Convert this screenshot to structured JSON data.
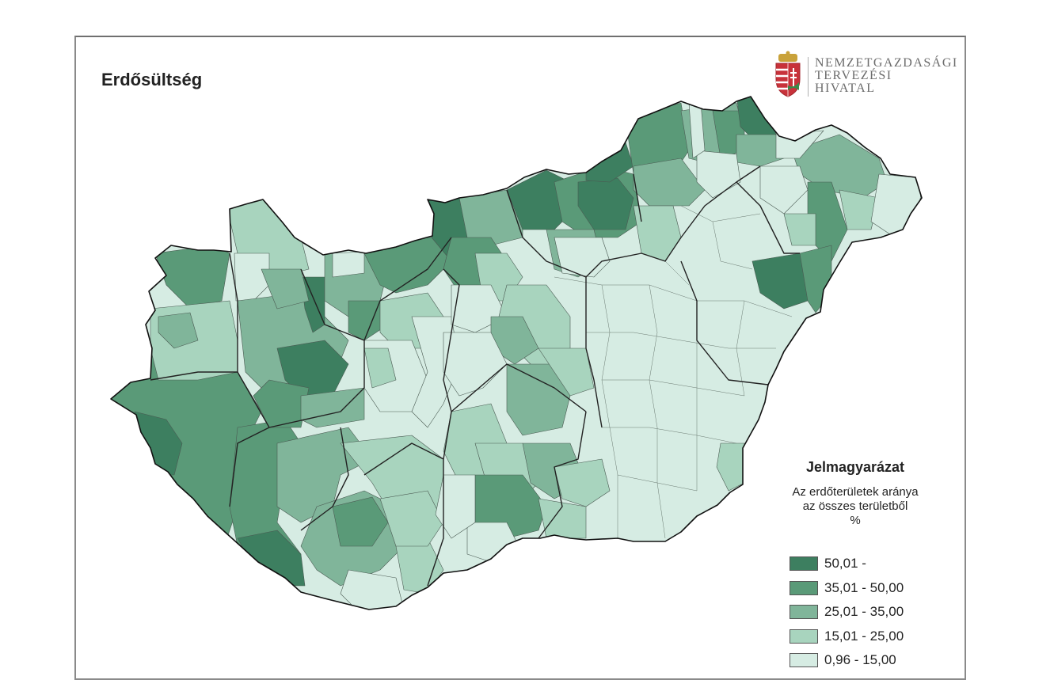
{
  "title": "Erdősültség",
  "logo": {
    "lines": [
      "Nemzetgazdasági",
      "Tervezési",
      "Hivatal"
    ],
    "icon": "hungarian-coat-of-arms-icon"
  },
  "legend": {
    "title": "Jelmagyarázat",
    "subtitle_lines": [
      "Az erdőterületek aránya",
      "az összes területből",
      "%"
    ],
    "classes": [
      {
        "label": "50,01 -",
        "color": "#3d7f60"
      },
      {
        "label": "35,01 - 50,00",
        "color": "#5a9a78"
      },
      {
        "label": "25,01 - 35,00",
        "color": "#80b59a"
      },
      {
        "label": "15,01 - 25,00",
        "color": "#a8d4be"
      },
      {
        "label": "0,96 - 15,00",
        "color": "#d6ece3"
      }
    ]
  },
  "colors": {
    "border": "#222222",
    "district_border": "#4a5a52"
  }
}
